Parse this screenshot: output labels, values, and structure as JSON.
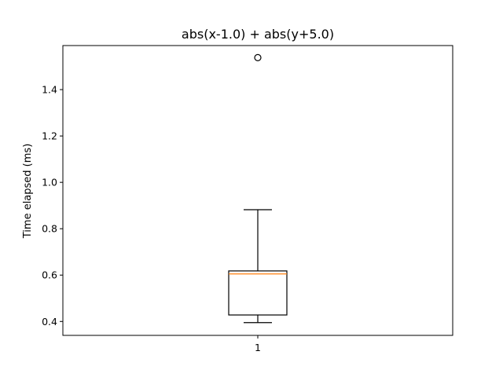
{
  "chart_data": {
    "type": "box",
    "title": "abs(x-1.0) + abs(y+5.0)",
    "xlabel": "",
    "ylabel": "Time elapsed (ms)",
    "categories": [
      "1"
    ],
    "ylim": [
      0.34,
      1.59
    ],
    "yticks": [
      0.4,
      0.6,
      0.8,
      1.0,
      1.2,
      1.4
    ],
    "ytick_labels": [
      "0.4",
      "0.6",
      "0.8",
      "1.0",
      "1.2",
      "1.4"
    ],
    "boxes": [
      {
        "whisker_low": 0.395,
        "q1": 0.428,
        "median": 0.605,
        "q3": 0.618,
        "whisker_high": 0.882,
        "outliers": [
          1.538
        ]
      }
    ],
    "colors": {
      "box": "#000000",
      "median": "#ff7f0e",
      "axes": "#000000"
    }
  }
}
